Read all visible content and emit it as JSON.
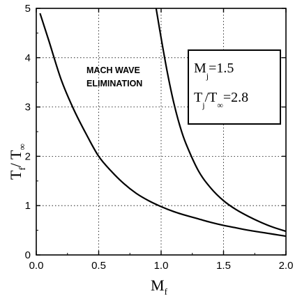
{
  "chart_data": {
    "type": "line",
    "xlabel": "M",
    "xlabel_sub": "f",
    "ylabel": "T",
    "ylabel_sub": "f",
    "ylabel_mid": "/ T",
    "ylabel_sub2": "∞",
    "xlim": [
      0,
      2.0
    ],
    "ylim": [
      0,
      5
    ],
    "x_ticks": [
      "0.0",
      "0.5",
      "1.0",
      "1.5",
      "2.0"
    ],
    "y_ticks": [
      "0",
      "1",
      "2",
      "3",
      "4",
      "5"
    ],
    "grid": "dotted",
    "annotation_lines": [
      "MACH WAVE",
      "ELIMINATION"
    ],
    "legend_box": {
      "line1": {
        "main": "M",
        "sub": "j",
        "rest": "=1.5"
      },
      "line2": {
        "main": "T",
        "sub": "j",
        "mid": "/T",
        "sub2": "∞",
        "rest": "=2.8"
      }
    },
    "series": [
      {
        "x": [
          0.03,
          0.1,
          0.2,
          0.3,
          0.4,
          0.5,
          0.6,
          0.7,
          0.8,
          0.9,
          1.0,
          1.1,
          1.2,
          1.3,
          1.4,
          1.5,
          1.6,
          1.7,
          1.8,
          1.9,
          2.0
        ],
        "y": [
          4.9,
          4.35,
          3.55,
          2.95,
          2.45,
          2.0,
          1.7,
          1.45,
          1.25,
          1.1,
          0.98,
          0.88,
          0.8,
          0.73,
          0.66,
          0.6,
          0.55,
          0.5,
          0.46,
          0.42,
          0.38
        ]
      },
      {
        "x": [
          0.96,
          1.0,
          1.05,
          1.1,
          1.15,
          1.2,
          1.3,
          1.4,
          1.5,
          1.6,
          1.7,
          1.8,
          1.9,
          2.0
        ],
        "y": [
          5.0,
          4.4,
          3.7,
          3.1,
          2.62,
          2.25,
          1.7,
          1.35,
          1.1,
          0.92,
          0.78,
          0.66,
          0.56,
          0.48
        ]
      }
    ]
  }
}
